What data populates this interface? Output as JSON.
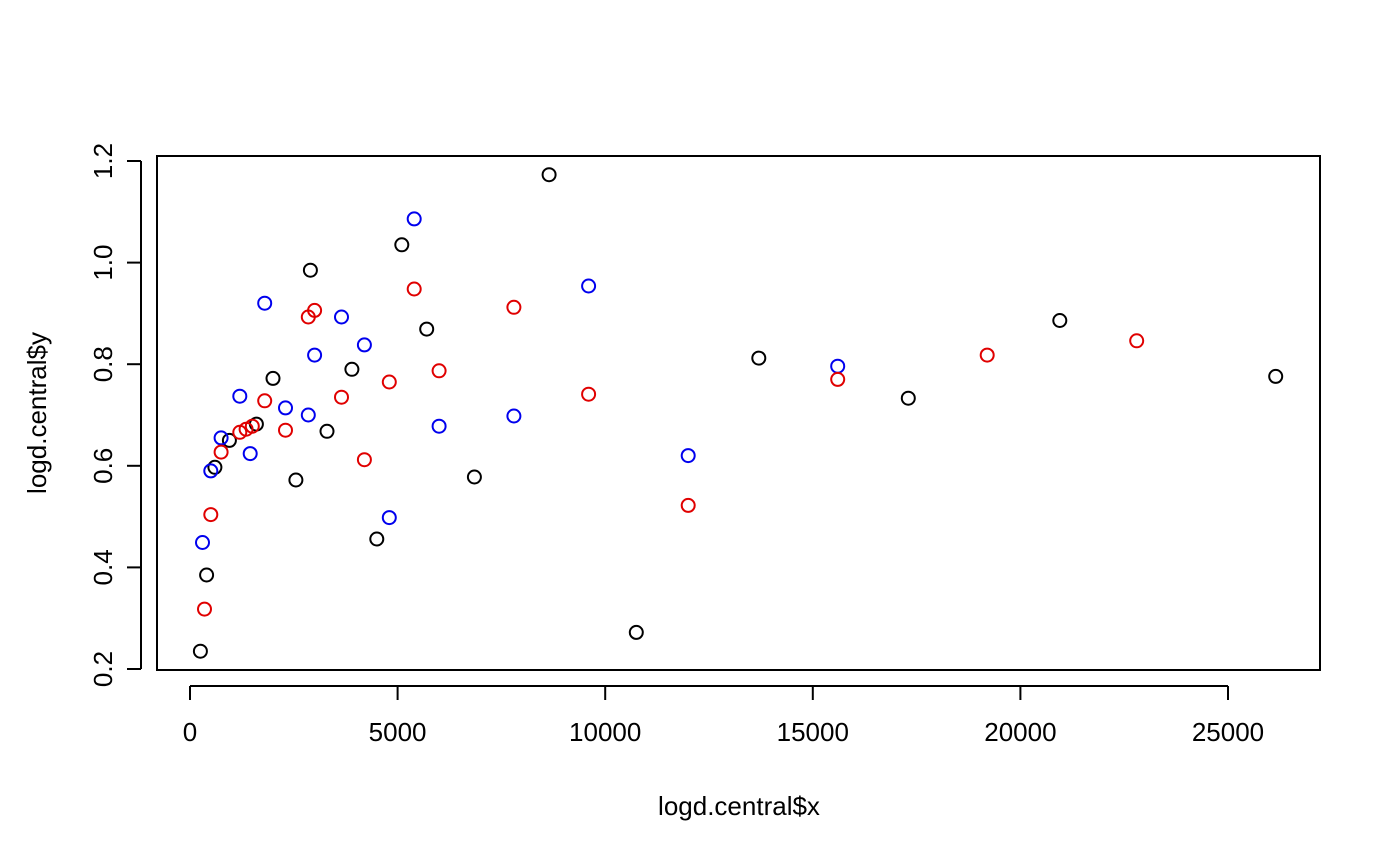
{
  "chart_data": {
    "type": "scatter",
    "title": "",
    "xlabel": "logd.central$x",
    "ylabel": "logd.central$y",
    "xlim": [
      -1000,
      27000
    ],
    "ylim": [
      0.2,
      1.2
    ],
    "xticks": [
      0,
      5000,
      10000,
      15000,
      20000,
      25000
    ],
    "xtick_labels": [
      "0",
      "5000",
      "10000",
      "15000",
      "20000",
      "25000"
    ],
    "yticks": [
      0.2,
      0.4,
      0.6,
      0.8,
      1.0,
      1.2
    ],
    "ytick_labels": [
      "0.2",
      "0.4",
      "0.6",
      "0.8",
      "1.0",
      "1.2"
    ],
    "grid": false,
    "legend": "none",
    "marker": "open-circle",
    "series": [
      {
        "color": "#000000",
        "points": [
          [
            250,
            0.235
          ],
          [
            400,
            0.385
          ],
          [
            600,
            0.597
          ],
          [
            950,
            0.65
          ],
          [
            1600,
            0.682
          ],
          [
            2000,
            0.772
          ],
          [
            2550,
            0.572
          ],
          [
            2900,
            0.985
          ],
          [
            3300,
            0.668
          ],
          [
            3900,
            0.79
          ],
          [
            4500,
            0.456
          ],
          [
            5100,
            1.035
          ],
          [
            5700,
            0.869
          ],
          [
            6850,
            0.578
          ],
          [
            8650,
            1.173
          ],
          [
            10750,
            0.272
          ],
          [
            13700,
            0.812
          ],
          [
            17300,
            0.733
          ],
          [
            20950,
            0.886
          ],
          [
            26150,
            0.776
          ]
        ]
      },
      {
        "color": "#0000ee",
        "points": [
          [
            300,
            0.449
          ],
          [
            500,
            0.59
          ],
          [
            750,
            0.655
          ],
          [
            1200,
            0.737
          ],
          [
            1450,
            0.624
          ],
          [
            1800,
            0.92
          ],
          [
            2300,
            0.714
          ],
          [
            2850,
            0.7
          ],
          [
            3000,
            0.818
          ],
          [
            3650,
            0.893
          ],
          [
            4200,
            0.838
          ],
          [
            4800,
            0.498
          ],
          [
            5400,
            1.086
          ],
          [
            6000,
            0.678
          ],
          [
            7800,
            0.698
          ],
          [
            9600,
            0.954
          ],
          [
            12000,
            0.62
          ],
          [
            15600,
            0.796
          ]
        ]
      },
      {
        "color": "#e00000",
        "points": [
          [
            350,
            0.318
          ],
          [
            500,
            0.504
          ],
          [
            750,
            0.627
          ],
          [
            1200,
            0.666
          ],
          [
            1350,
            0.672
          ],
          [
            1500,
            0.678
          ],
          [
            1800,
            0.728
          ],
          [
            2300,
            0.67
          ],
          [
            2850,
            0.893
          ],
          [
            3000,
            0.906
          ],
          [
            3650,
            0.735
          ],
          [
            4200,
            0.612
          ],
          [
            4800,
            0.765
          ],
          [
            5400,
            0.948
          ],
          [
            6000,
            0.787
          ],
          [
            7800,
            0.912
          ],
          [
            9600,
            0.741
          ],
          [
            12000,
            0.522
          ],
          [
            15600,
            0.77
          ],
          [
            19200,
            0.818
          ],
          [
            22800,
            0.846
          ]
        ]
      }
    ]
  }
}
